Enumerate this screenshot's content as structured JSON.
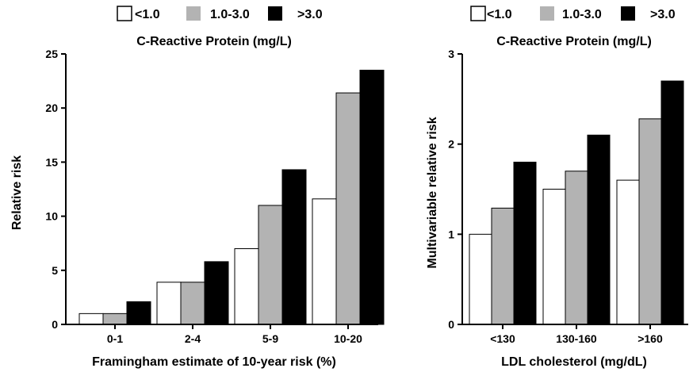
{
  "chart_data": [
    {
      "type": "bar",
      "legend": [
        "<1.0",
        "1.0-3.0",
        ">3.0"
      ],
      "title": "C-Reactive Protein (mg/L)",
      "xlabel": "Framingham estimate of 10-year risk (%)",
      "ylabel": "Relative risk",
      "categories": [
        "0-1",
        "2-4",
        "5-9",
        "10-20"
      ],
      "series": [
        {
          "name": "<1.0",
          "color": "#ffffff",
          "values": [
            1.0,
            3.9,
            7.0,
            11.6
          ]
        },
        {
          "name": "1.0-3.0",
          "color": "#b3b3b3",
          "values": [
            1.0,
            3.9,
            11.0,
            21.4
          ]
        },
        {
          "name": ">3.0",
          "color": "#000000",
          "values": [
            2.1,
            5.8,
            14.3,
            23.5
          ]
        }
      ],
      "ylim": [
        0,
        25
      ],
      "yticks": [
        0,
        5,
        10,
        15,
        20,
        25
      ],
      "grid": false,
      "legend_position": "top"
    },
    {
      "type": "bar",
      "legend": [
        "<1.0",
        "1.0-3.0",
        ">3.0"
      ],
      "title": "C-Reactive Protein (mg/L)",
      "xlabel": "LDL cholesterol (mg/dL)",
      "ylabel": "Multivariable relative risk",
      "categories": [
        "<130",
        "130-160",
        ">160"
      ],
      "series": [
        {
          "name": "<1.0",
          "color": "#ffffff",
          "values": [
            1.0,
            1.5,
            1.6
          ]
        },
        {
          "name": "1.0-3.0",
          "color": "#b3b3b3",
          "values": [
            1.29,
            1.7,
            2.28
          ]
        },
        {
          "name": ">3.0",
          "color": "#000000",
          "values": [
            1.8,
            2.1,
            2.7
          ]
        }
      ],
      "ylim": [
        0,
        3
      ],
      "yticks": [
        0,
        1,
        2,
        3
      ],
      "grid": false,
      "legend_position": "top"
    }
  ]
}
